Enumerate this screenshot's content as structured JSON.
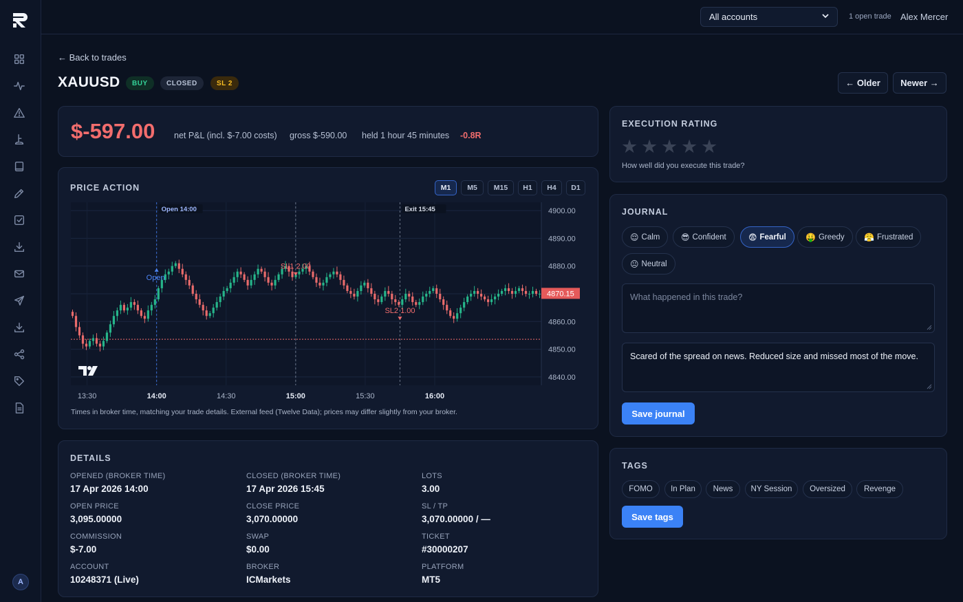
{
  "topbar": {
    "account_select": "All accounts",
    "open_trades": "1 open trade",
    "user_name": "Alex Mercer"
  },
  "sidebar": {
    "icons": [
      "dashboard-icon",
      "activity-icon",
      "alert-icon",
      "chart-icon",
      "book-icon",
      "pen-icon",
      "checklist-icon",
      "download-icon",
      "mail-icon",
      "send-icon",
      "import-icon",
      "share-icon",
      "tag-icon",
      "report-icon"
    ],
    "avatar": "A"
  },
  "header": {
    "back": "← Back to trades",
    "symbol": "XAUUSD",
    "side": "BUY",
    "status": "CLOSED",
    "stop_badge": "SL 2",
    "older": "← Older",
    "newer": "Newer →"
  },
  "pnl": {
    "amount": "$-597.00",
    "net": "net P&L (incl. $-7.00 costs)",
    "gross": "gross $-590.00",
    "held": "held 1 hour 45 minutes",
    "r_multiple": "-0.8R"
  },
  "chart": {
    "title": "PRICE ACTION",
    "timeframes": [
      "M1",
      "M5",
      "M15",
      "H1",
      "H4",
      "D1"
    ],
    "active_timeframe": "M1",
    "note": "Times in broker time, matching your trade details. External feed (Twelve Data); prices may differ slightly from your broker."
  },
  "chart_data": {
    "type": "candlestick",
    "title": "PRICE ACTION",
    "x_ticks": [
      "13:30",
      "14:00",
      "14:30",
      "15:00",
      "15:30",
      "16:00"
    ],
    "y_ticks": [
      "4900.00",
      "4890.00",
      "4880.00",
      "4870.00",
      "4860.00",
      "4850.00",
      "4840.00"
    ],
    "ylim": [
      4837,
      4903
    ],
    "current_price": "4870.15",
    "entry_line_price": 4853.6,
    "markers": [
      {
        "label": "Open 14:00",
        "time": "14:00"
      },
      {
        "label": "Exit 15:45",
        "time": "15:45"
      }
    ],
    "annotations": [
      {
        "label": "Open",
        "time": "14:00",
        "price": 4875
      },
      {
        "label": "SL1 2.00",
        "time": "15:00",
        "price": 4879
      },
      {
        "label": "SL2 1.00",
        "time": "15:45",
        "price": 4863
      }
    ],
    "close_series": [
      4862,
      4858,
      4855,
      4852,
      4851,
      4853,
      4854,
      4852,
      4851,
      4853,
      4856,
      4859,
      4862,
      4864,
      4866,
      4864,
      4865,
      4867,
      4866,
      4864,
      4862,
      4861,
      4864,
      4866,
      4868,
      4872,
      4875,
      4877,
      4878,
      4880,
      4881,
      4879,
      4877,
      4875,
      4873,
      4870,
      4868,
      4866,
      4864,
      4862,
      4863,
      4865,
      4867,
      4869,
      4871,
      4872,
      4874,
      4876,
      4878,
      4877,
      4875,
      4873,
      4875,
      4877,
      4879,
      4878,
      4876,
      4874,
      4873,
      4875,
      4877,
      4879,
      4880,
      4878,
      4876,
      4877,
      4878,
      4879,
      4880,
      4878,
      4876,
      4874,
      4873,
      4874,
      4876,
      4877,
      4878,
      4877,
      4875,
      4873,
      4871,
      4870,
      4869,
      4871,
      4873,
      4874,
      4872,
      4870,
      4868,
      4867,
      4869,
      4871,
      4870,
      4868,
      4867,
      4866,
      4868,
      4870,
      4869,
      4867,
      4866,
      4867,
      4869,
      4870,
      4871,
      4872,
      4870,
      4868,
      4866,
      4864,
      4862,
      4861,
      4863,
      4865,
      4867,
      4869,
      4870,
      4871,
      4870,
      4869,
      4868,
      4867,
      4868,
      4869,
      4870,
      4871,
      4872,
      4871,
      4870,
      4871,
      4872,
      4871,
      4870,
      4870,
      4871,
      4870,
      4870
    ]
  },
  "details": {
    "title": "DETAILS",
    "fields": [
      {
        "label": "OPENED (BROKER TIME)",
        "value": "17 Apr 2026 14:00"
      },
      {
        "label": "CLOSED (BROKER TIME)",
        "value": "17 Apr 2026 15:45"
      },
      {
        "label": "LOTS",
        "value": "3.00"
      },
      {
        "label": "OPEN PRICE",
        "value": "3,095.00000"
      },
      {
        "label": "CLOSE PRICE",
        "value": "3,070.00000"
      },
      {
        "label": "SL / TP",
        "value": "3,070.00000 / —"
      },
      {
        "label": "COMMISSION",
        "value": "$-7.00"
      },
      {
        "label": "SWAP",
        "value": "$0.00"
      },
      {
        "label": "TICKET",
        "value": "#30000207"
      },
      {
        "label": "ACCOUNT",
        "value": "10248371 (Live)"
      },
      {
        "label": "BROKER",
        "value": "ICMarkets"
      },
      {
        "label": "PLATFORM",
        "value": "MT5"
      }
    ]
  },
  "rating": {
    "title": "EXECUTION RATING",
    "stars": 5,
    "value": 0,
    "hint": "How well did you execute this trade?"
  },
  "journal": {
    "title": "JOURNAL",
    "moods": [
      {
        "emoji": "😌",
        "label": "Calm"
      },
      {
        "emoji": "😎",
        "label": "Confident"
      },
      {
        "emoji": "😨",
        "label": "Fearful"
      },
      {
        "emoji": "🤑",
        "label": "Greedy"
      },
      {
        "emoji": "😤",
        "label": "Frustrated"
      },
      {
        "emoji": "😐",
        "label": "Neutral"
      }
    ],
    "active_mood": "Fearful",
    "placeholder": "What happened in this trade?",
    "entry": "Scared of the spread on news. Reduced size and missed most of the move.",
    "save": "Save journal"
  },
  "tags": {
    "title": "TAGS",
    "items": [
      "FOMO",
      "In Plan",
      "News",
      "NY Session",
      "Oversized",
      "Revenge"
    ],
    "save": "Save tags"
  },
  "colors": {
    "accent": "#3b82f6",
    "loss": "#f26d6d",
    "gain": "#34d399",
    "warning": "#fbbf24"
  }
}
